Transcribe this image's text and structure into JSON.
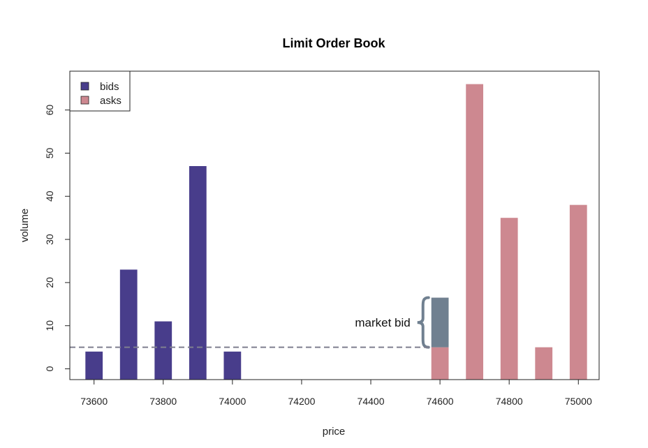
{
  "chart_data": {
    "type": "bar",
    "title": "Limit Order Book",
    "xlabel": "price",
    "ylabel": "volume",
    "xlim": [
      73530,
      75060
    ],
    "ylim": [
      -2.5,
      69
    ],
    "xticks": [
      73600,
      73800,
      74000,
      74200,
      74400,
      74600,
      74800,
      75000
    ],
    "yticks": [
      0,
      10,
      20,
      30,
      40,
      50,
      60
    ],
    "bar_width": 50,
    "base": -2.5,
    "series": [
      {
        "name": "bids",
        "color": "#483D8B",
        "x": [
          73600,
          73700,
          73800,
          73900,
          74000
        ],
        "values": [
          4,
          23,
          11,
          47,
          4
        ]
      },
      {
        "name": "asks",
        "color": "#CD8890",
        "x": [
          74600,
          74700,
          74800,
          74900,
          75000
        ],
        "values": [
          5,
          66,
          35,
          5,
          38
        ]
      }
    ],
    "reference_line": {
      "y": 5,
      "style": "dashed",
      "color": "#7F7F8F"
    },
    "market_bid": {
      "label": "market bid",
      "x": 74600,
      "from": 5,
      "to": 16.5,
      "color": "#708090"
    },
    "legend": {
      "position": "top-left",
      "entries": [
        "bids",
        "asks"
      ]
    },
    "grid": false
  }
}
